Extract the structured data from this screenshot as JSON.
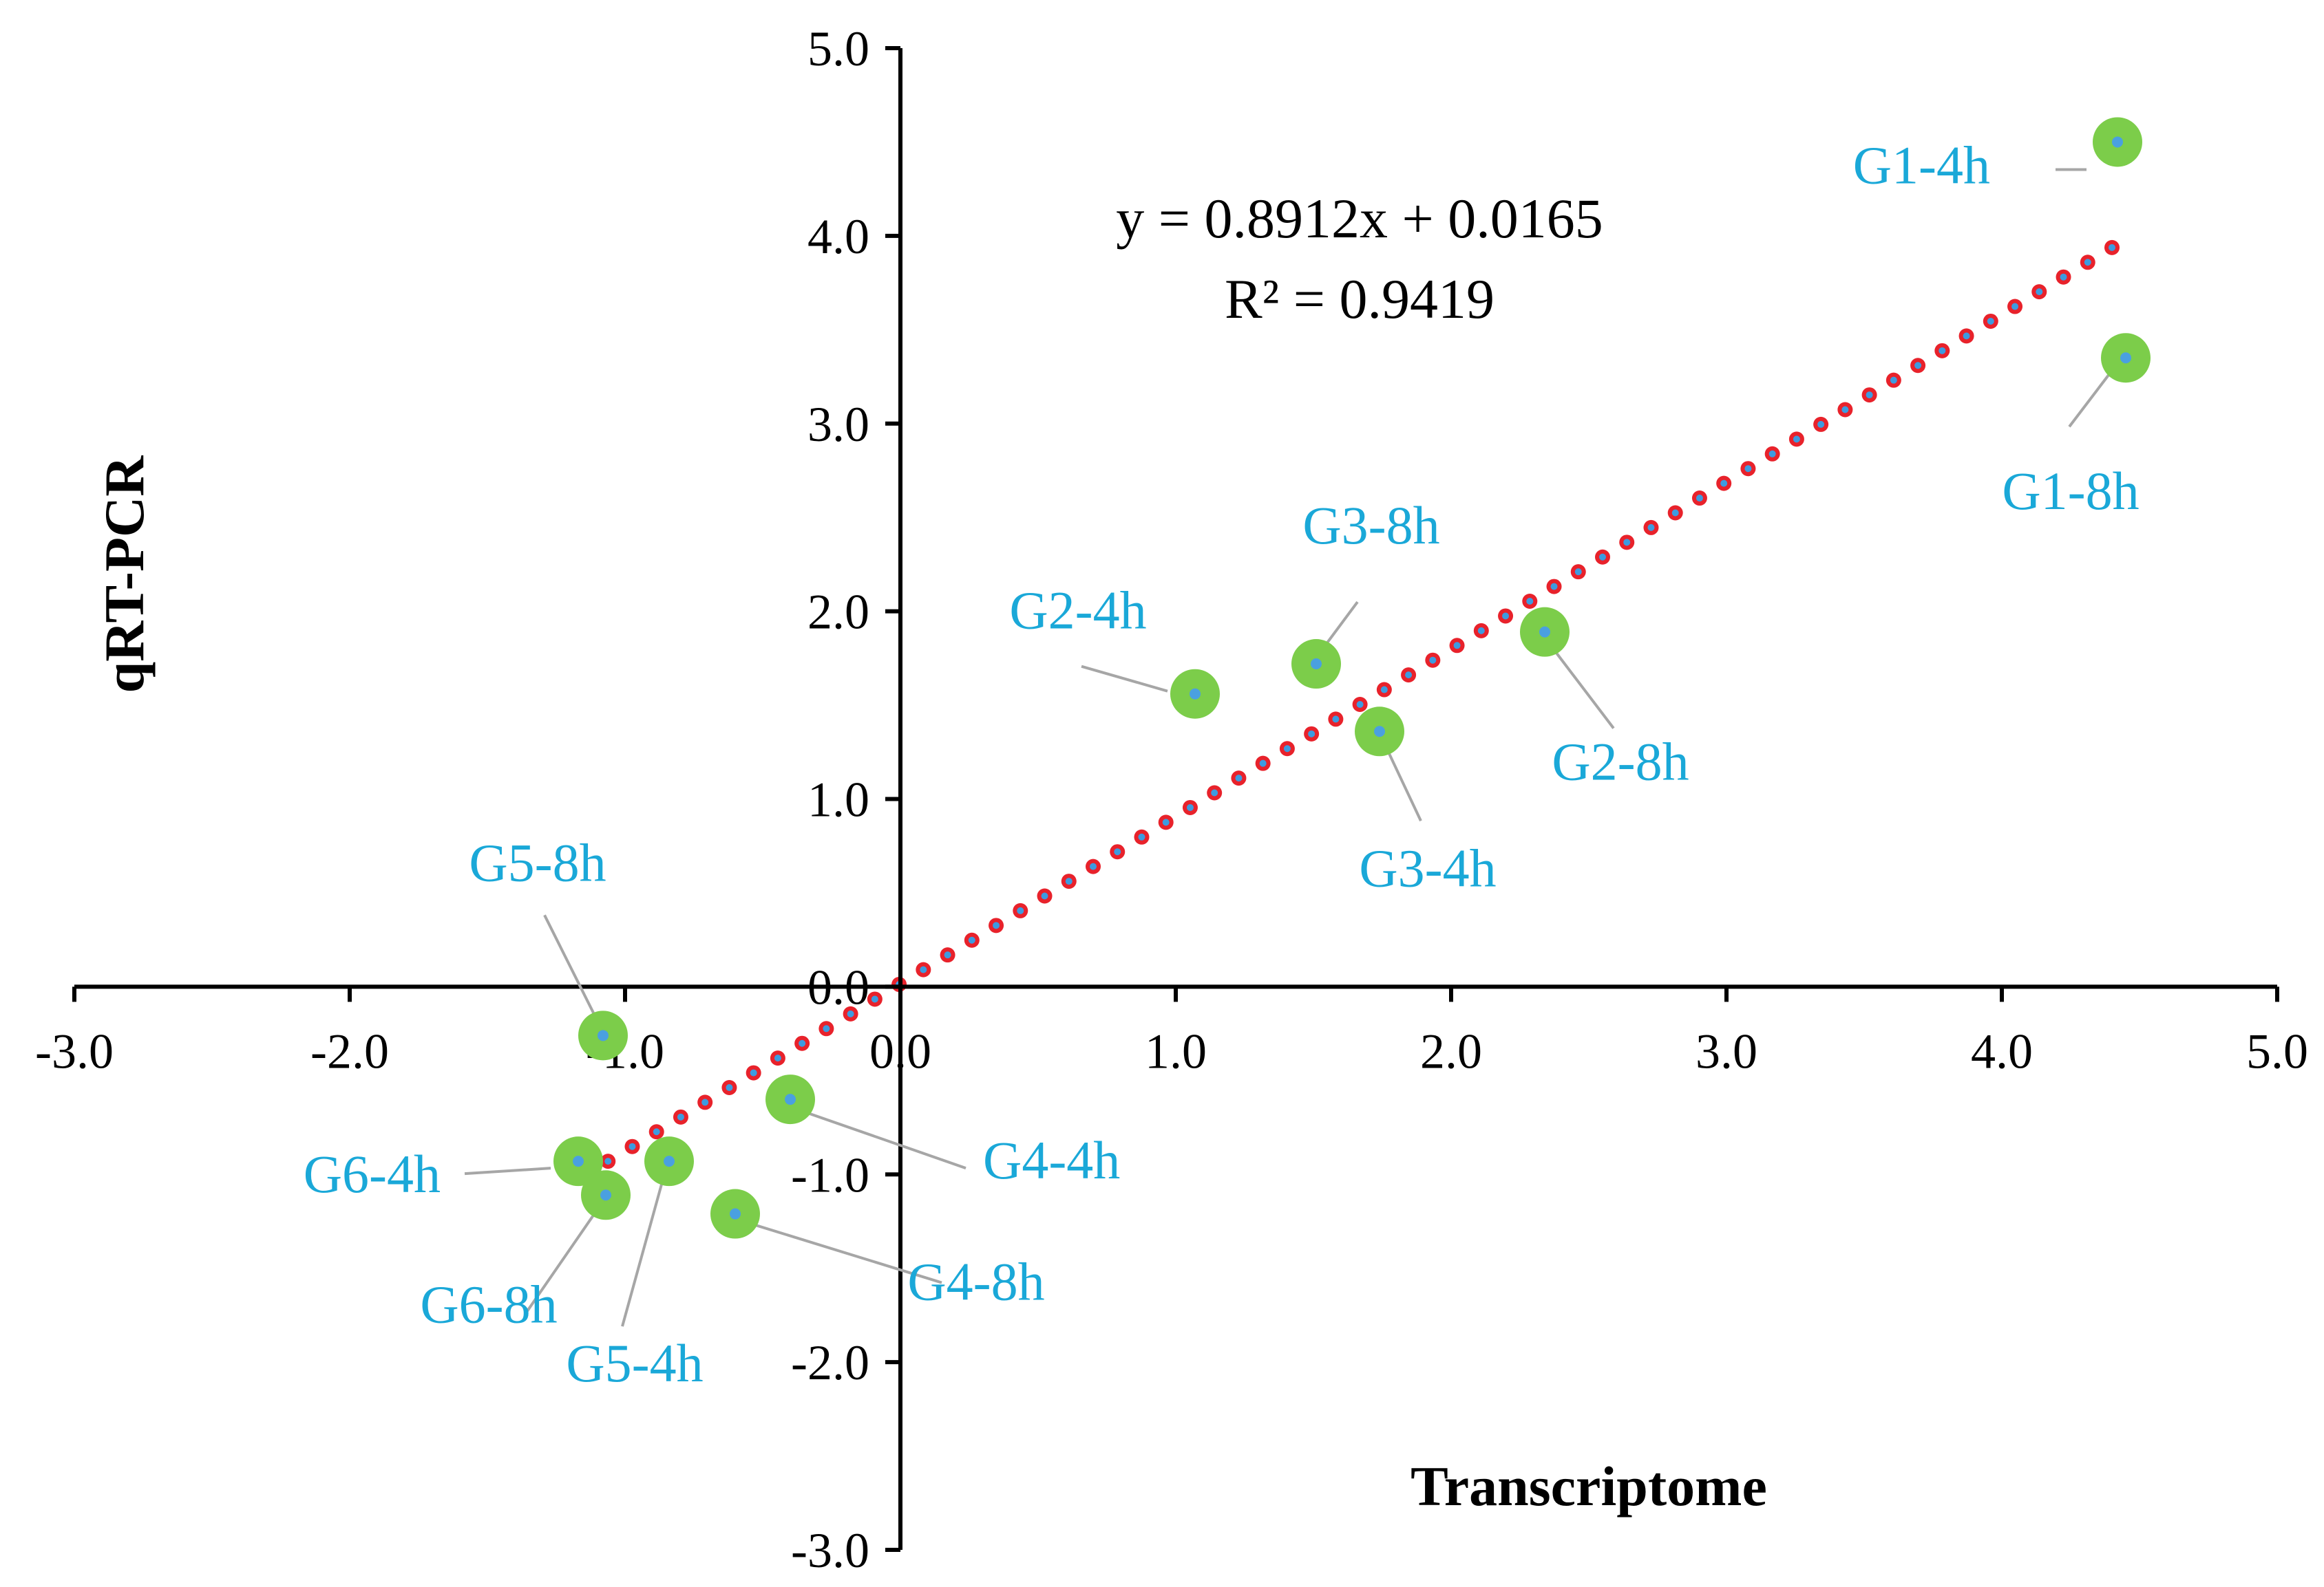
{
  "chart_data": {
    "type": "scatter",
    "xlabel": "Transcriptome",
    "ylabel": "qRT-PCR",
    "xlim": [
      -3.0,
      5.0
    ],
    "ylim": [
      -3.0,
      5.0
    ],
    "xticks": [
      "-3.0",
      "-2.0",
      "-1.0",
      "0.0",
      "1.0",
      "2.0",
      "3.0",
      "4.0",
      "5.0"
    ],
    "yticks": [
      "-3.0",
      "-2.0",
      "-1.0",
      "0.0",
      "1.0",
      "2.0",
      "3.0",
      "4.0",
      "5.0"
    ],
    "equation": "y = 0.8912x + 0.0165",
    "r_squared": "R² = 0.9419",
    "trendline": {
      "slope": 0.8912,
      "intercept": 0.0165,
      "x_range": [
        -1.15,
        4.4
      ]
    },
    "points": [
      {
        "label": "G1-4h",
        "x": 4.42,
        "y": 4.5
      },
      {
        "label": "G1-8h",
        "x": 4.45,
        "y": 3.35
      },
      {
        "label": "G2-4h",
        "x": 1.07,
        "y": 1.56
      },
      {
        "label": "G2-8h",
        "x": 2.34,
        "y": 1.89
      },
      {
        "label": "G3-8h",
        "x": 1.51,
        "y": 1.72
      },
      {
        "label": "G3-4h",
        "x": 1.74,
        "y": 1.36
      },
      {
        "label": "G5-8h",
        "x": -1.08,
        "y": -0.26
      },
      {
        "label": "G4-4h",
        "x": -0.4,
        "y": -0.6
      },
      {
        "label": "G6-4h",
        "x": -1.17,
        "y": -0.93
      },
      {
        "label": "G6-8h",
        "x": -1.07,
        "y": -1.11
      },
      {
        "label": "G5-4h",
        "x": -0.84,
        "y": -0.93
      },
      {
        "label": "G4-8h",
        "x": -0.6,
        "y": -1.21
      }
    ],
    "colors": {
      "marker": "#7ccd4a",
      "marker_center": "#4aa0e0",
      "label": "#1aa8d8",
      "leader": "#a6a6a6",
      "trend_fill": "#e8222b",
      "trend_dots": "#3d9be0",
      "axis": "#000000"
    }
  }
}
